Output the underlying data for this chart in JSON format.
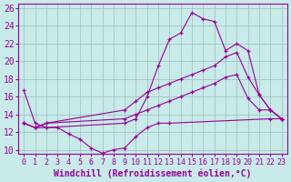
{
  "title": "",
  "xlabel": "Windchill (Refroidissement éolien,°C)",
  "ylabel": "",
  "xlim": [
    -0.5,
    23.5
  ],
  "ylim": [
    9.5,
    26.5
  ],
  "xticks": [
    0,
    1,
    2,
    3,
    4,
    5,
    6,
    7,
    8,
    9,
    10,
    11,
    12,
    13,
    14,
    15,
    16,
    17,
    18,
    19,
    20,
    21,
    22,
    23
  ],
  "yticks": [
    10,
    12,
    14,
    16,
    18,
    20,
    22,
    24,
    26
  ],
  "bg_color": "#c8eae8",
  "line_color": "#990099",
  "grid_color": "#9abfbe",
  "lines": [
    {
      "comment": "wavy line going down then up (bottom curve)",
      "x": [
        0,
        1,
        2,
        3,
        4,
        5,
        6,
        7,
        8,
        9,
        10,
        11,
        12,
        13,
        22,
        23
      ],
      "y": [
        16.7,
        13.0,
        12.5,
        12.5,
        11.8,
        11.2,
        10.2,
        9.6,
        10.0,
        10.2,
        11.5,
        12.5,
        13.0,
        13.0,
        13.5,
        13.5
      ]
    },
    {
      "comment": "big peak line going up to ~25.5 at x=15 then down",
      "x": [
        0,
        1,
        2,
        9,
        10,
        11,
        12,
        13,
        14,
        15,
        16,
        17,
        18,
        19,
        20,
        21,
        22,
        23
      ],
      "y": [
        13.0,
        12.5,
        12.5,
        13.0,
        13.5,
        16.0,
        19.5,
        22.5,
        23.2,
        25.5,
        24.8,
        24.5,
        21.2,
        22.0,
        21.2,
        16.2,
        14.5,
        13.5
      ]
    },
    {
      "comment": "diagonal line going from lower-left to upper-right peak ~21 at x=19 then drops",
      "x": [
        0,
        1,
        2,
        9,
        10,
        11,
        12,
        13,
        14,
        15,
        16,
        17,
        18,
        19,
        20,
        21,
        22,
        23
      ],
      "y": [
        13.0,
        12.5,
        13.0,
        14.5,
        15.5,
        16.5,
        17.0,
        17.5,
        18.0,
        18.5,
        19.0,
        19.5,
        20.5,
        21.0,
        18.2,
        16.2,
        14.5,
        13.5
      ]
    },
    {
      "comment": "nearly straight diagonal line",
      "x": [
        0,
        1,
        2,
        9,
        10,
        11,
        12,
        13,
        14,
        15,
        16,
        17,
        18,
        19,
        20,
        21,
        22,
        23
      ],
      "y": [
        13.0,
        12.5,
        13.0,
        13.5,
        14.0,
        14.5,
        15.0,
        15.5,
        16.0,
        16.5,
        17.0,
        17.5,
        18.2,
        18.5,
        15.8,
        14.5,
        14.5,
        13.5
      ]
    }
  ],
  "font_size_xlabel": 7,
  "font_size_yticks": 7,
  "font_size_xticks": 6
}
